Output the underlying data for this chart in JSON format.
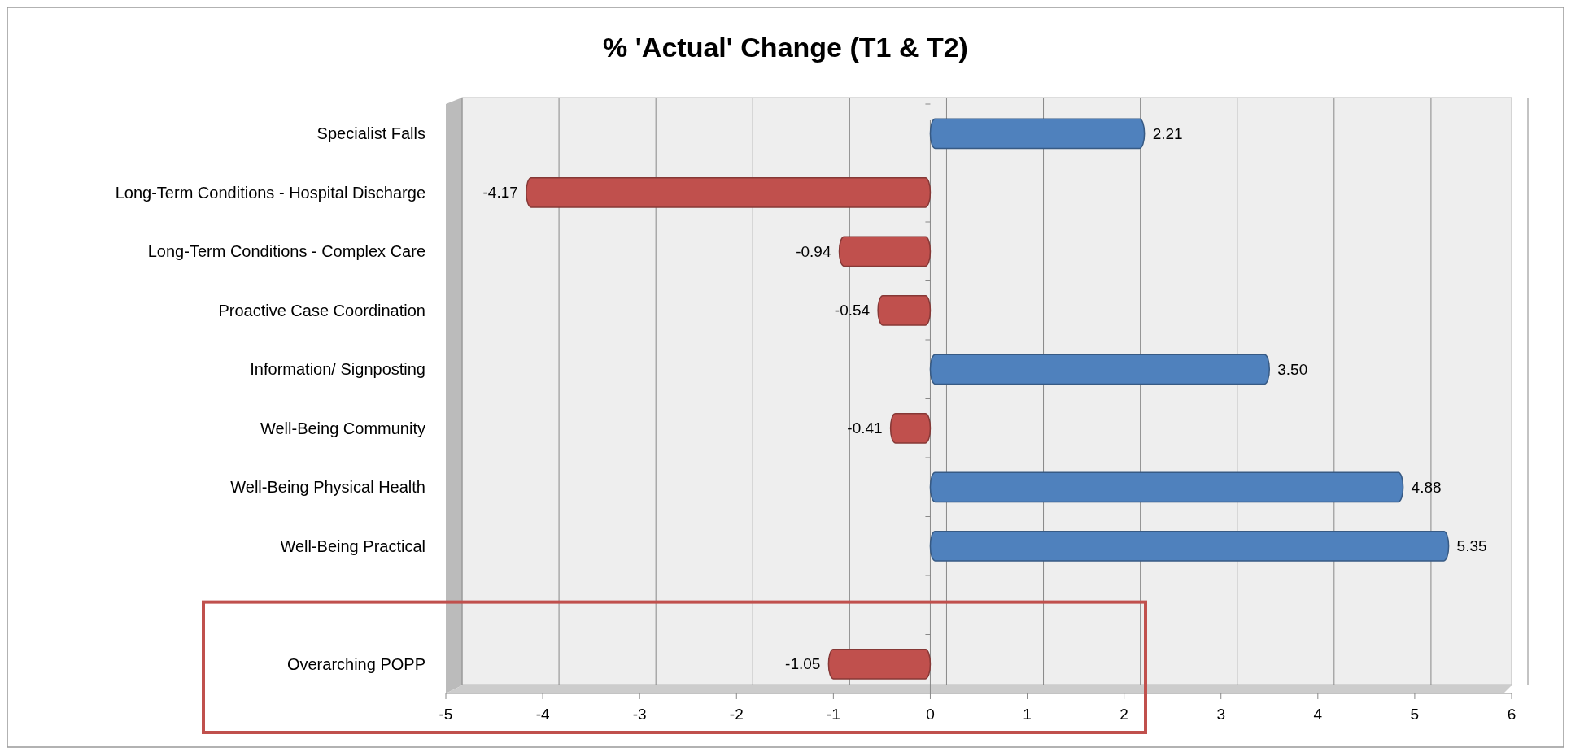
{
  "chart_data": {
    "type": "bar",
    "orientation": "horizontal",
    "title": "% 'Actual' Change (T1 & T2)",
    "categories": [
      "Specialist Falls",
      "Long-Term Conditions - Hospital Discharge",
      "Long-Term Conditions - Complex Care",
      "Proactive Case Coordination",
      "Information/ Signposting",
      "Well-Being Community",
      "Well-Being Physical Health",
      "Well-Being Practical",
      null,
      "Overarching POPP"
    ],
    "values": [
      2.21,
      -4.17,
      -0.94,
      -0.54,
      3.5,
      -0.41,
      4.88,
      5.35,
      null,
      -1.05
    ],
    "value_labels": [
      "2.21",
      "-4.17",
      "-0.94",
      "-0.54",
      "3.50",
      "-0.41",
      "4.88",
      "5.35",
      null,
      "-1.05"
    ],
    "colors": [
      "#4f81bd",
      "#c0504d",
      "#c0504d",
      "#c0504d",
      "#4f81bd",
      "#c0504d",
      "#4f81bd",
      "#4f81bd",
      null,
      "#c0504d"
    ],
    "xlim": [
      -5,
      6
    ],
    "xticks": [
      -5,
      -4,
      -3,
      -2,
      -1,
      0,
      1,
      2,
      3,
      4,
      5,
      6
    ],
    "grid": "x"
  }
}
